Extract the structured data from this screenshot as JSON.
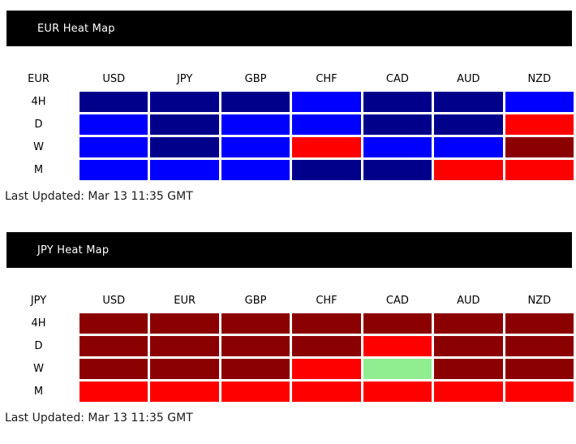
{
  "colors": {
    "darkblue": "#00008b",
    "blue": "#0000ff",
    "red": "#ff0000",
    "darkred": "#8b0000",
    "green": "#90ee90",
    "bar_background": "#000000",
    "bar_text": "#ffffff"
  },
  "chart_data": [
    {
      "type": "heatmap",
      "title": "EUR Heat Map",
      "base": "EUR",
      "columns": [
        "USD",
        "JPY",
        "GBP",
        "CHF",
        "CAD",
        "AUD",
        "NZD"
      ],
      "rows": [
        {
          "label": "4H",
          "cells": [
            "darkblue",
            "darkblue",
            "darkblue",
            "blue",
            "darkblue",
            "darkblue",
            "blue"
          ]
        },
        {
          "label": "D",
          "cells": [
            "blue",
            "darkblue",
            "blue",
            "blue",
            "darkblue",
            "darkblue",
            "red"
          ]
        },
        {
          "label": "W",
          "cells": [
            "blue",
            "darkblue",
            "blue",
            "red",
            "blue",
            "blue",
            "darkred"
          ]
        },
        {
          "label": "M",
          "cells": [
            "blue",
            "blue",
            "blue",
            "darkblue",
            "darkblue",
            "red",
            "red"
          ]
        }
      ],
      "last_updated": "Last Updated: Mar 13 11:35 GMT"
    },
    {
      "type": "heatmap",
      "title": "JPY Heat Map",
      "base": "JPY",
      "columns": [
        "USD",
        "EUR",
        "GBP",
        "CHF",
        "CAD",
        "AUD",
        "NZD"
      ],
      "rows": [
        {
          "label": "4H",
          "cells": [
            "darkred",
            "darkred",
            "darkred",
            "darkred",
            "darkred",
            "darkred",
            "darkred"
          ]
        },
        {
          "label": "D",
          "cells": [
            "darkred",
            "darkred",
            "darkred",
            "darkred",
            "red",
            "darkred",
            "darkred"
          ]
        },
        {
          "label": "W",
          "cells": [
            "darkred",
            "darkred",
            "darkred",
            "red",
            "green",
            "darkred",
            "darkred"
          ]
        },
        {
          "label": "M",
          "cells": [
            "red",
            "red",
            "red",
            "red",
            "red",
            "red",
            "red"
          ]
        }
      ],
      "last_updated": "Last Updated: Mar 13 11:35 GMT"
    }
  ]
}
